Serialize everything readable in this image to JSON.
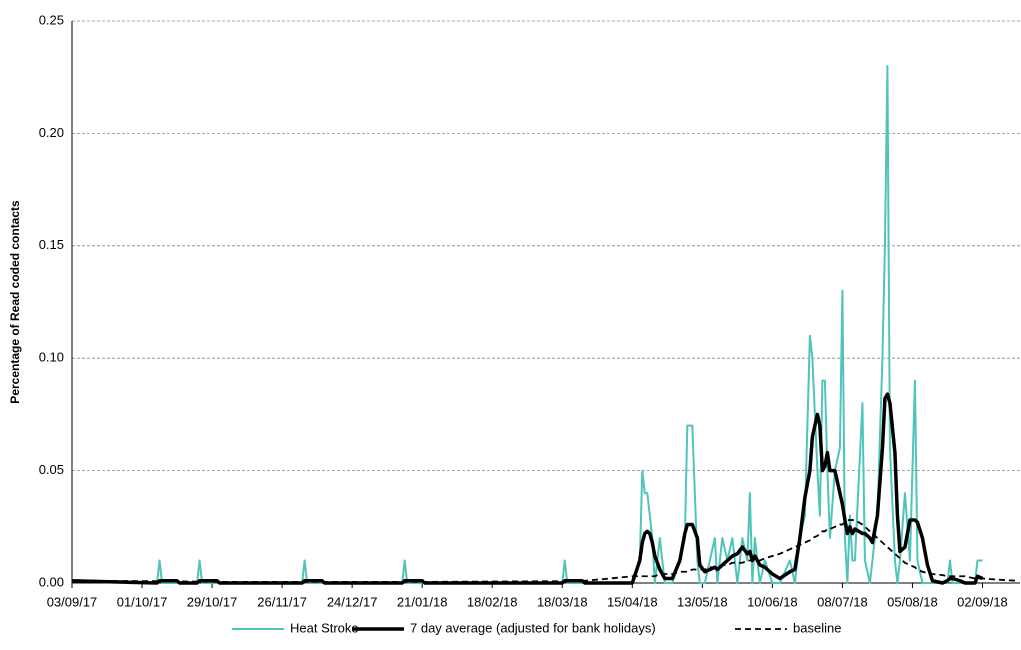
{
  "chart_data": {
    "type": "line",
    "y_label": "Percentage of Read coded contacts",
    "x": [
      "03/09/17",
      "07/10/17",
      "08/10/17",
      "09/10/17",
      "15/10/17",
      "16/10/17",
      "23/10/17",
      "24/10/17",
      "25/10/17",
      "31/10/17",
      "01/11/17",
      "04/12/17",
      "05/12/17",
      "06/12/17",
      "12/12/17",
      "13/12/17",
      "13/01/18",
      "14/01/18",
      "15/01/18",
      "21/01/18",
      "22/01/18",
      "18/03/18",
      "19/03/18",
      "20/03/18",
      "26/03/18",
      "27/03/18",
      "06/04/18",
      "15/04/18",
      "18/04/18",
      "19/04/18",
      "20/04/18",
      "21/04/18",
      "22/04/18",
      "23/04/18",
      "24/04/18",
      "26/04/18",
      "28/04/18",
      "01/05/18",
      "04/05/18",
      "06/05/18",
      "07/05/18",
      "09/05/18",
      "11/05/18",
      "12/05/18",
      "14/05/18",
      "16/05/18",
      "18/05/18",
      "19/05/18",
      "21/05/18",
      "23/05/18",
      "25/05/18",
      "27/05/18",
      "29/05/18",
      "31/05/18",
      "01/06/18",
      "02/06/18",
      "03/06/18",
      "05/06/18",
      "07/06/18",
      "10/06/18",
      "13/06/18",
      "17/06/18",
      "19/06/18",
      "21/06/18",
      "23/06/18",
      "25/06/18",
      "26/06/18",
      "28/06/18",
      "29/06/18",
      "30/06/18",
      "01/07/18",
      "02/07/18",
      "03/07/18",
      "05/07/18",
      "07/07/18",
      "08/07/18",
      "09/07/18",
      "10/07/18",
      "11/07/18",
      "12/07/18",
      "13/07/18",
      "16/07/18",
      "17/07/18",
      "19/07/18",
      "20/07/18",
      "22/07/18",
      "24/07/18",
      "25/07/18",
      "26/07/18",
      "27/07/18",
      "29/07/18",
      "30/07/18",
      "31/07/18",
      "02/08/18",
      "04/08/18",
      "06/08/18",
      "07/08/18",
      "09/08/18",
      "11/08/18",
      "13/08/18",
      "17/08/18",
      "19/08/18",
      "20/08/18",
      "21/08/18",
      "24/08/18",
      "26/08/18",
      "30/08/18",
      "31/08/18",
      "02/09/18",
      "08/09/18",
      "16/09/18"
    ],
    "series": [
      {
        "name": "Heat Stroke",
        "color": "#4fc4b8",
        "width": 2,
        "dashed": false,
        "values": [
          0.001,
          0,
          0.01,
          0,
          0,
          0,
          0,
          0.01,
          0,
          0,
          0,
          0,
          0.01,
          0,
          0,
          0,
          0,
          0.01,
          0,
          0,
          0,
          0,
          0.01,
          0,
          0,
          0,
          0,
          0,
          0.01,
          0.05,
          0.04,
          0.04,
          0.03,
          0.02,
          0,
          0.02,
          0,
          0,
          0.01,
          0.02,
          0.07,
          0.07,
          0.01,
          0,
          0,
          0.01,
          0.02,
          0,
          0.02,
          0.01,
          0.02,
          0,
          0.02,
          0.01,
          0.04,
          0,
          0.02,
          0,
          0.01,
          0,
          0,
          0.01,
          0,
          0.02,
          0.03,
          0.11,
          0.1,
          0.05,
          0.03,
          0.09,
          0.09,
          0.05,
          0.02,
          0.05,
          0.06,
          0.13,
          0.02,
          0,
          0.03,
          0.01,
          0.01,
          0.08,
          0.01,
          0,
          0.01,
          0.03,
          0.1,
          0.15,
          0.23,
          0.06,
          0.01,
          0,
          0.01,
          0.04,
          0.01,
          0.09,
          0.01,
          0,
          0,
          0,
          0,
          0,
          0.01,
          0,
          0,
          0,
          0,
          0.01,
          0.01,
          null,
          null
        ]
      },
      {
        "name": "7 day average (adjusted for bank holidays)",
        "color": "#000000",
        "width": 3.5,
        "dashed": false,
        "values": [
          0.001,
          0,
          0.001,
          0.001,
          0.001,
          0,
          0,
          0.001,
          0.001,
          0.001,
          0,
          0,
          0.001,
          0.001,
          0.001,
          0,
          0,
          0.001,
          0.001,
          0.001,
          0,
          0,
          0.001,
          0.001,
          0.001,
          0,
          0,
          0,
          0.01,
          0.018,
          0.022,
          0.023,
          0.022,
          0.018,
          0.012,
          0.006,
          0.002,
          0.002,
          0.01,
          0.022,
          0.026,
          0.026,
          0.02,
          0.008,
          0.005,
          0.006,
          0.007,
          0.006,
          0.008,
          0.01,
          0.012,
          0.013,
          0.016,
          0.013,
          0.014,
          0.01,
          0.012,
          0.008,
          0.007,
          0.004,
          0.002,
          0.005,
          0.006,
          0.02,
          0.038,
          0.05,
          0.065,
          0.075,
          0.07,
          0.05,
          0.052,
          0.058,
          0.05,
          0.05,
          0.04,
          0.035,
          0.028,
          0.022,
          0.025,
          0.022,
          0.024,
          0.022,
          0.022,
          0.02,
          0.018,
          0.03,
          0.06,
          0.082,
          0.084,
          0.08,
          0.058,
          0.03,
          0.014,
          0.016,
          0.028,
          0.028,
          0.027,
          0.02,
          0.008,
          0.001,
          0,
          0.001,
          0.002,
          0.002,
          0.001,
          0,
          0,
          0.003,
          0.002,
          null,
          null
        ]
      },
      {
        "name": "baseline",
        "color": "#000000",
        "width": 1.8,
        "dashed": true,
        "values": [
          0.001,
          0.0008,
          0.0008,
          0.0008,
          0.0007,
          0.0007,
          0.0006,
          0.0006,
          0.0006,
          0.0005,
          0.0005,
          0.0005,
          0.0005,
          0.0005,
          0.0005,
          0.0005,
          0.0005,
          0.0005,
          0.0005,
          0.0005,
          0.0005,
          0.0008,
          0.0008,
          0.001,
          0.001,
          0.001,
          0.002,
          0.003,
          0.003,
          0.003,
          0.003,
          0.003,
          0.003,
          0.003,
          0.003,
          0.004,
          0.004,
          0.004,
          0.005,
          0.005,
          0.005,
          0.006,
          0.006,
          0.006,
          0.006,
          0.007,
          0.007,
          0.007,
          0.008,
          0.008,
          0.009,
          0.009,
          0.009,
          0.01,
          0.01,
          0.01,
          0.01,
          0.01,
          0.011,
          0.012,
          0.013,
          0.015,
          0.016,
          0.017,
          0.018,
          0.019,
          0.02,
          0.021,
          0.022,
          0.023,
          0.023,
          0.024,
          0.024,
          0.025,
          0.026,
          0.026,
          0.027,
          0.028,
          0.028,
          0.028,
          0.028,
          0.026,
          0.025,
          0.023,
          0.022,
          0.02,
          0.018,
          0.017,
          0.016,
          0.015,
          0.013,
          0.012,
          0.011,
          0.009,
          0.008,
          0.007,
          0.006,
          0.005,
          0.0045,
          0.004,
          0.0035,
          0.003,
          0.003,
          0.003,
          0.003,
          0.003,
          0.002,
          0.002,
          0.002,
          0.0015,
          0.001
        ]
      }
    ],
    "xlim": [
      "03/09/17",
      "17/09/18"
    ],
    "xticks": [
      "03/09/17",
      "01/10/17",
      "29/10/17",
      "26/11/17",
      "24/12/17",
      "21/01/18",
      "18/02/18",
      "18/03/18",
      "15/04/18",
      "13/05/18",
      "10/06/18",
      "08/07/18",
      "05/08/18",
      "02/09/18"
    ],
    "ylim": [
      0,
      0.25
    ],
    "yticks": [
      {
        "value": 0,
        "label": "0.00"
      },
      {
        "value": 0.05,
        "label": "0.05"
      },
      {
        "value": 0.1,
        "label": "0.10"
      },
      {
        "value": 0.15,
        "label": "0.15"
      },
      {
        "value": 0.2,
        "label": "0.20"
      },
      {
        "value": 0.25,
        "label": "0.25"
      }
    ],
    "grid": true,
    "legend": "bottom"
  }
}
